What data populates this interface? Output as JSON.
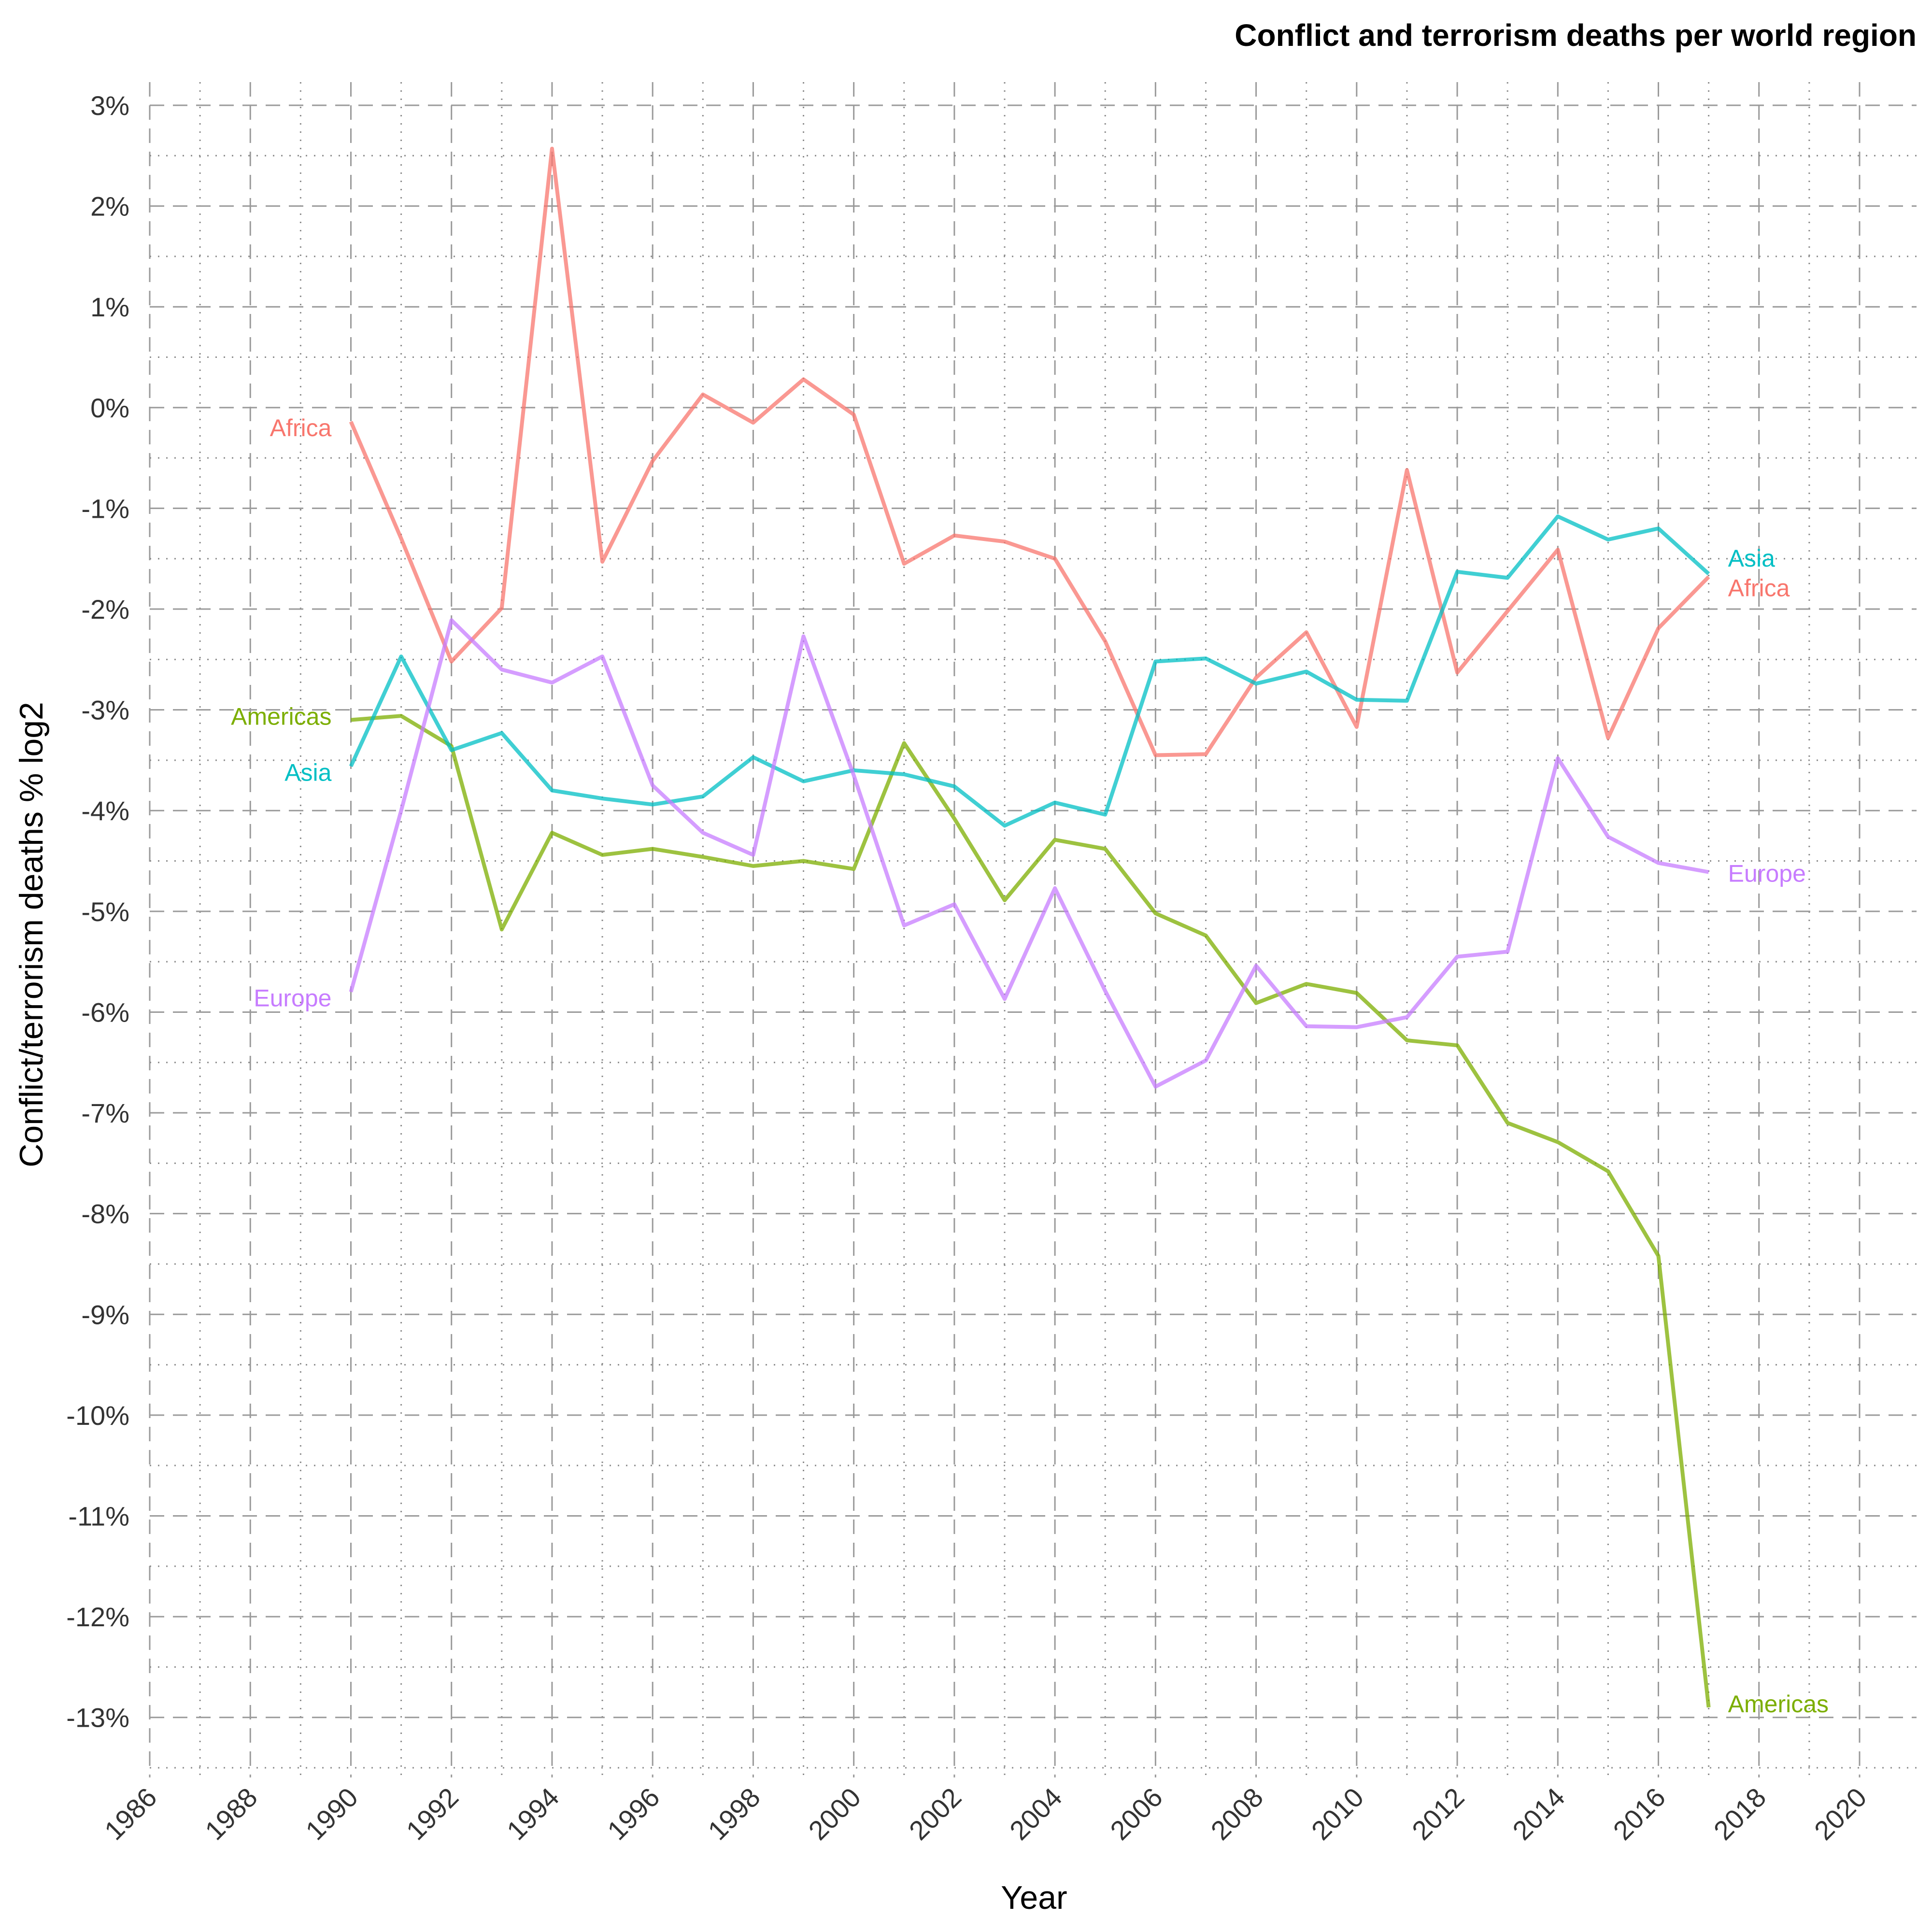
{
  "chart_data": {
    "type": "line",
    "title": "Conflict and terrorism deaths per world region",
    "xlabel": "Year",
    "ylabel": "Conflict/terrorism deaths % log2",
    "xlim": [
      1986,
      2020
    ],
    "ylim": [
      -13.5,
      3
    ],
    "x_tick_labels": [
      "1986",
      "1988",
      "1990",
      "1992",
      "1994",
      "1996",
      "1998",
      "2000",
      "2002",
      "2004",
      "2006",
      "2008",
      "2010",
      "2012",
      "2014",
      "2016",
      "2018",
      "2020"
    ],
    "y_tick_labels": [
      "3%",
      "2%",
      "1%",
      "0%",
      "-1%",
      "-2%",
      "-3%",
      "-4%",
      "-5%",
      "-6%",
      "-7%",
      "-8%",
      "-9%",
      "-10%",
      "-11%",
      "-12%",
      "-13%"
    ],
    "grid": true,
    "legend": "direct labels at line start and end",
    "x": [
      1990,
      1991,
      1992,
      1993,
      1994,
      1995,
      1996,
      1997,
      1998,
      1999,
      2000,
      2001,
      2002,
      2003,
      2004,
      2005,
      2006,
      2007,
      2008,
      2009,
      2010,
      2011,
      2012,
      2013,
      2014,
      2015,
      2016,
      2017
    ],
    "series": [
      {
        "name": "Africa",
        "color": "#F8766D",
        "values": [
          -0.14,
          -1.3,
          -2.52,
          -1.99,
          2.57,
          -1.53,
          -0.53,
          0.13,
          -0.15,
          0.28,
          -0.07,
          -1.55,
          -1.27,
          -1.33,
          -1.5,
          -2.32,
          -3.45,
          -3.44,
          -2.68,
          -2.23,
          -3.17,
          -0.62,
          -2.63,
          -2.02,
          -1.41,
          -3.28,
          -2.19,
          -1.68
        ]
      },
      {
        "name": "Americas",
        "color": "#7CAE00",
        "values": [
          -3.1,
          -3.06,
          -3.36,
          -5.18,
          -4.22,
          -4.44,
          -4.38,
          -4.46,
          -4.55,
          -4.5,
          -4.58,
          -3.33,
          -4.08,
          -4.89,
          -4.29,
          -4.38,
          -5.02,
          -5.24,
          -5.91,
          -5.72,
          -5.81,
          -6.28,
          -6.33,
          -7.1,
          -7.29,
          -7.58,
          -8.42,
          -12.9
        ]
      },
      {
        "name": "Asia",
        "color": "#00BFC4",
        "values": [
          -3.56,
          -2.47,
          -3.4,
          -3.23,
          -3.8,
          -3.88,
          -3.94,
          -3.86,
          -3.47,
          -3.71,
          -3.6,
          -3.64,
          -3.76,
          -4.15,
          -3.92,
          -4.04,
          -2.52,
          -2.49,
          -2.74,
          -2.62,
          -2.9,
          -2.91,
          -1.63,
          -1.69,
          -1.08,
          -1.31,
          -1.2,
          -1.65
        ]
      },
      {
        "name": "Europe",
        "color": "#C77CFF",
        "values": [
          -5.8,
          -4.0,
          -2.11,
          -2.6,
          -2.73,
          -2.47,
          -3.75,
          -4.22,
          -4.44,
          -2.27,
          -3.65,
          -5.14,
          -4.93,
          -5.87,
          -4.77,
          -5.79,
          -6.74,
          -6.48,
          -5.54,
          -6.14,
          -6.15,
          -6.05,
          -5.45,
          -5.4,
          -3.48,
          -4.26,
          -4.52,
          -4.61
        ]
      }
    ]
  }
}
